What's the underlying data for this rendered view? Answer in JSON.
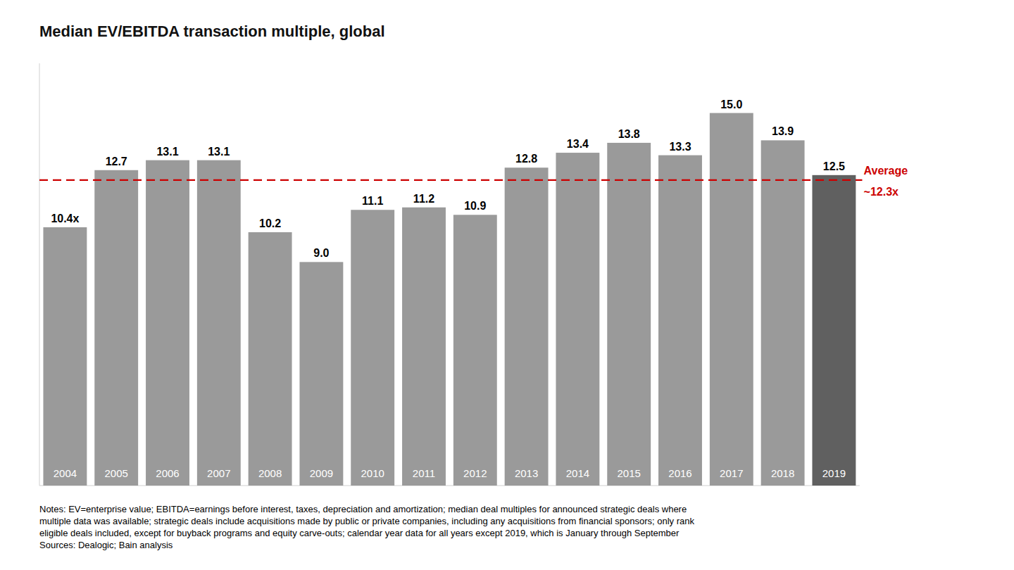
{
  "chart_data": {
    "type": "bar",
    "title": "Median EV/EBITDA transaction multiple, global",
    "categories": [
      "2004",
      "2005",
      "2006",
      "2007",
      "2008",
      "2009",
      "2010",
      "2011",
      "2012",
      "2013",
      "2014",
      "2015",
      "2016",
      "2017",
      "2018",
      "2019"
    ],
    "values": [
      10.4,
      12.7,
      13.1,
      13.1,
      10.2,
      9.0,
      11.1,
      11.2,
      10.9,
      12.8,
      13.4,
      13.8,
      13.3,
      15.0,
      13.9,
      12.5
    ],
    "value_labels": [
      "10.4x",
      "12.7",
      "13.1",
      "13.1",
      "10.2",
      "9.0",
      "11.1",
      "11.2",
      "10.9",
      "12.8",
      "13.4",
      "13.8",
      "13.3",
      "15.0",
      "13.9",
      "12.5"
    ],
    "colors": [
      "#9a9a9a",
      "#9a9a9a",
      "#9a9a9a",
      "#9a9a9a",
      "#9a9a9a",
      "#9a9a9a",
      "#9a9a9a",
      "#9a9a9a",
      "#9a9a9a",
      "#9a9a9a",
      "#9a9a9a",
      "#9a9a9a",
      "#9a9a9a",
      "#9a9a9a",
      "#9a9a9a",
      "#606060"
    ],
    "average_line": {
      "value": 12.3,
      "labels": [
        "Average",
        "~12.3x"
      ],
      "color": "#cc0000"
    },
    "note": "Notes: EV=enterprise value; EBITDA=earnings before interest, taxes, depreciation and amortization; median deal multiples for announced strategic deals where\nmultiple data was available; strategic deals include acquisitions made by public or private companies, including any acquisitions from financial sponsors; only rank\neligible deals included, except for buyback programs and equity carve-outs; calendar year data for all years except 2019, which is January through September\nSources: Dealogic; Bain analysis",
    "ylim": [
      0,
      17
    ],
    "data_labels": true,
    "tick_labels": false,
    "grid": false
  }
}
